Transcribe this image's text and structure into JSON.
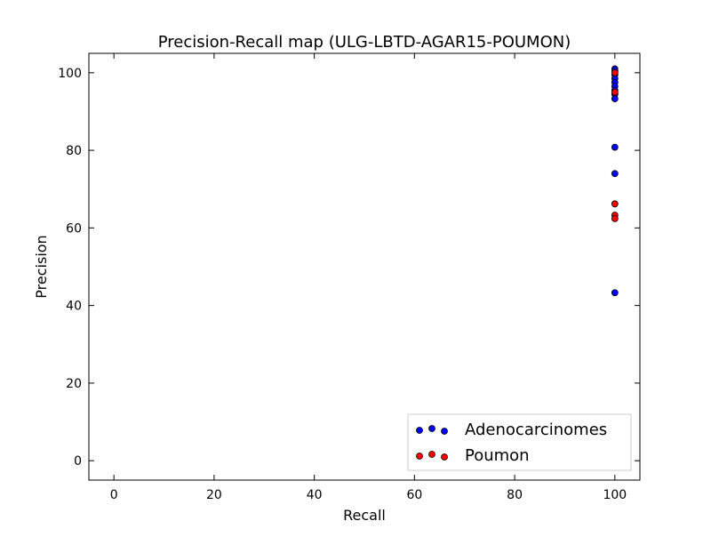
{
  "chart_data": {
    "type": "scatter",
    "title": "Precision-Recall map (ULG-LBTD-AGAR15-POUMON)",
    "xlabel": "Recall",
    "ylabel": "Precision",
    "xlim": [
      -5,
      105
    ],
    "ylim": [
      -5,
      105
    ],
    "xticks": [
      0,
      20,
      40,
      60,
      80,
      100
    ],
    "yticks": [
      0,
      20,
      40,
      60,
      80,
      100
    ],
    "grid": false,
    "legend_position": "lower-right",
    "series": [
      {
        "name": "Adenocarcinomes",
        "color": "#0000ff",
        "points": [
          {
            "x": 100,
            "y": 101
          },
          {
            "x": 100,
            "y": 100.5
          },
          {
            "x": 100,
            "y": 99.5
          },
          {
            "x": 100,
            "y": 98.5
          },
          {
            "x": 100,
            "y": 97.5
          },
          {
            "x": 100,
            "y": 96.5
          },
          {
            "x": 100,
            "y": 95.5
          },
          {
            "x": 100,
            "y": 94.5
          },
          {
            "x": 100,
            "y": 93.3
          },
          {
            "x": 100,
            "y": 80.8
          },
          {
            "x": 100,
            "y": 74
          },
          {
            "x": 100,
            "y": 43.3
          }
        ]
      },
      {
        "name": "Poumon",
        "color": "#ff0000",
        "points": [
          {
            "x": 100,
            "y": 100
          },
          {
            "x": 100,
            "y": 95
          },
          {
            "x": 100,
            "y": 66.2
          },
          {
            "x": 100,
            "y": 63.3
          },
          {
            "x": 100,
            "y": 62.4
          },
          {
            "x": 100,
            "y": 5.9
          }
        ]
      }
    ]
  }
}
